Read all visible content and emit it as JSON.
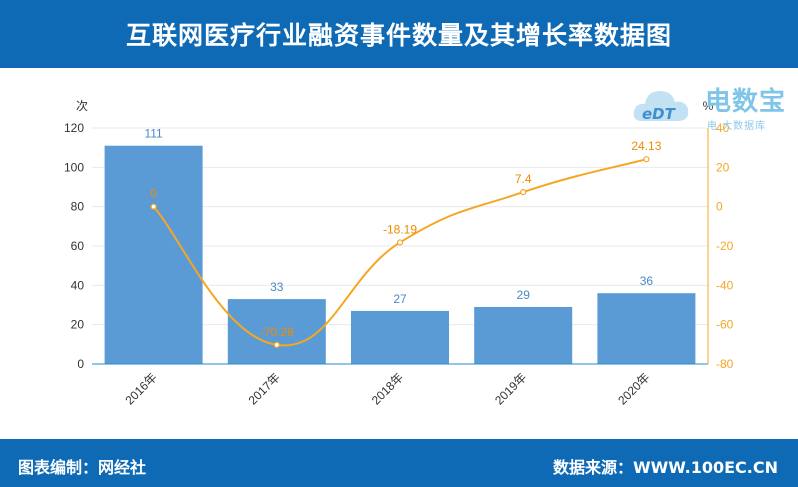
{
  "header": {
    "title": "互联网医疗行业融资事件数量及其增长率数据图"
  },
  "footer": {
    "left": "图表编制：网经社",
    "right": "数据来源：WWW.100EC.CN"
  },
  "logo": {
    "name": "电数宝",
    "sub": "电 大数据库",
    "mark_text": "eDT"
  },
  "chart_data": {
    "type": "bar",
    "categories": [
      "2016年",
      "2017年",
      "2018年",
      "2019年",
      "2020年"
    ],
    "series": [
      {
        "values": [
          111,
          33,
          27,
          29,
          36
        ],
        "type": "bar",
        "color": "#5b9bd5"
      },
      {
        "values": [
          0,
          -70.28,
          -18.19,
          7.4,
          24.13
        ],
        "type": "line",
        "color": "#f5a623"
      }
    ],
    "bar_labels": [
      "111",
      "33",
      "27",
      "29",
      "36"
    ],
    "line_labels": [
      "0",
      "-70.28",
      "-18.19",
      "7.4",
      "24.13"
    ],
    "left_axis": {
      "unit": "次",
      "ylim": [
        0,
        120
      ],
      "ticks": [
        "0",
        "20",
        "40",
        "60",
        "80",
        "100",
        "120"
      ]
    },
    "right_axis": {
      "unit": "%",
      "ylim": [
        -80,
        40
      ],
      "ticks": [
        "-80",
        "-60",
        "-40",
        "-20",
        "0",
        "20",
        "40"
      ]
    },
    "grid": true
  }
}
